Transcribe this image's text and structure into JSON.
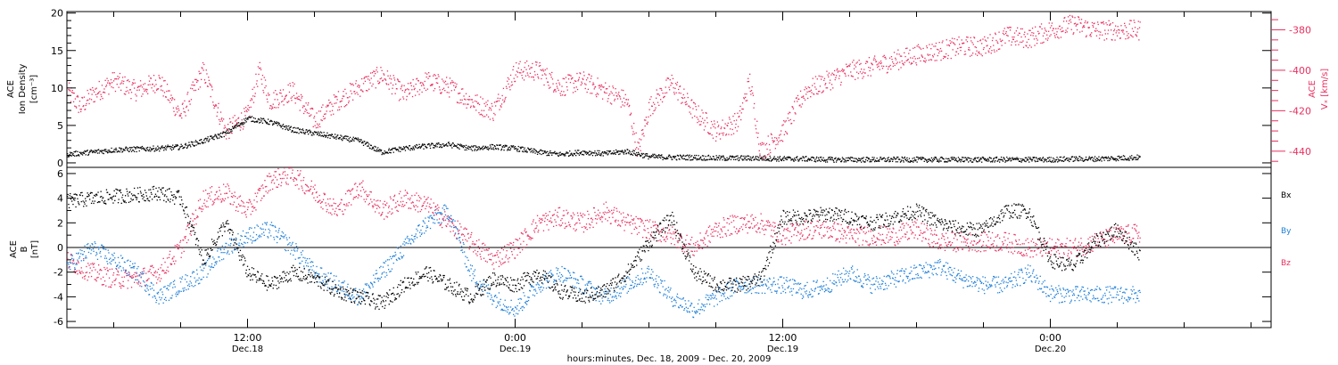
{
  "colors": {
    "frame": "#000000",
    "speed": "#e8305f",
    "bx": "#000000",
    "by": "#1f7fd8",
    "bz": "#e8305f"
  },
  "time_axis": {
    "label": "hours:minutes, Dec. 18, 2009 - Dec. 20, 2009",
    "ticks": [
      {
        "hour": 12,
        "time": "12:00",
        "date": "Dec.18"
      },
      {
        "hour": 24,
        "time": "0:00",
        "date": "Dec.19"
      },
      {
        "hour": 36,
        "time": "12:00",
        "date": "Dec.19"
      },
      {
        "hour": 48,
        "time": "0:00",
        "date": "Dec.20"
      }
    ]
  },
  "chart_data": [
    {
      "type": "scatter",
      "xlim": [
        3.9,
        57.9
      ],
      "ylabel_lines": [
        "ACE",
        "Ion Density",
        "[cm⁻³]"
      ],
      "ylim": [
        -0.6,
        20.2
      ],
      "yticks": [
        0,
        5,
        10,
        15,
        20
      ],
      "right_axis": {
        "label_lines": [
          "ACE",
          "Vₓ [km/s]"
        ],
        "ylim": [
          -448,
          -371
        ],
        "ticks": [
          -440,
          -420,
          -400,
          -380
        ]
      },
      "series": [
        {
          "axis": "left",
          "color_key": "bx",
          "x": [
            3.9,
            5,
            6,
            7,
            8,
            9,
            10,
            10.5,
            11,
            12,
            13,
            14,
            15,
            16,
            17,
            18,
            19,
            20,
            21,
            22,
            23,
            24,
            25,
            26,
            27,
            28,
            29,
            30,
            31,
            32,
            33,
            34,
            35,
            36,
            37,
            38,
            39,
            40,
            41,
            42,
            43,
            44,
            45,
            46,
            47,
            48,
            49,
            50,
            51,
            52
          ],
          "y": [
            1.2,
            1.5,
            1.8,
            1.9,
            2.0,
            2.2,
            3.0,
            3.5,
            4.0,
            6.0,
            5.5,
            4.5,
            4.0,
            3.5,
            3.0,
            1.5,
            2.0,
            2.3,
            2.5,
            2.0,
            2.2,
            2.0,
            1.5,
            1.2,
            1.5,
            1.3,
            1.6,
            0.9,
            0.8,
            0.8,
            0.7,
            0.7,
            0.7,
            0.6,
            0.6,
            0.5,
            0.5,
            0.5,
            0.5,
            0.5,
            0.5,
            0.5,
            0.5,
            0.5,
            0.5,
            0.5,
            0.6,
            0.6,
            0.7,
            0.8
          ]
        },
        {
          "axis": "right",
          "color_key": "speed",
          "x": [
            3.9,
            4.5,
            5,
            6,
            7,
            8,
            9,
            10,
            11,
            12,
            12.5,
            13,
            14,
            15,
            16,
            17,
            18,
            19,
            20,
            21,
            22,
            23,
            24,
            25,
            26,
            27,
            28,
            29,
            29.5,
            30,
            31,
            32,
            33,
            34,
            34.5,
            35,
            36,
            37,
            38,
            39,
            40,
            41,
            42,
            43,
            44,
            45,
            46,
            47,
            48,
            49,
            50,
            51,
            52
          ],
          "y": [
            -410,
            -418,
            -412,
            -405,
            -410,
            -405,
            -422,
            -400,
            -430,
            -422,
            -400,
            -415,
            -410,
            -425,
            -415,
            -408,
            -402,
            -412,
            -405,
            -408,
            -415,
            -420,
            -400,
            -400,
            -408,
            -405,
            -410,
            -415,
            -440,
            -418,
            -406,
            -420,
            -430,
            -425,
            -405,
            -440,
            -430,
            -410,
            -405,
            -400,
            -398,
            -395,
            -392,
            -390,
            -388,
            -388,
            -383,
            -384,
            -380,
            -377,
            -380,
            -380,
            -380
          ]
        }
      ]
    },
    {
      "type": "scatter",
      "xlim": [
        3.9,
        57.9
      ],
      "ylabel_lines": [
        "ACE",
        "B",
        "[nT]"
      ],
      "ylim": [
        -6.5,
        6.5
      ],
      "yticks": [
        -6,
        -4,
        -2,
        0,
        2,
        4,
        6
      ],
      "zero_line": true,
      "series": [
        {
          "name": "Bx",
          "color_key": "bx",
          "x": [
            3.9,
            5,
            6,
            7,
            8,
            9,
            10,
            11,
            12,
            13,
            14,
            15,
            16,
            17,
            18,
            19,
            20,
            21,
            22,
            23,
            24,
            25,
            26,
            27,
            28,
            29,
            30,
            31,
            32,
            33,
            34,
            35,
            36,
            37,
            38,
            39,
            40,
            41,
            42,
            43,
            44,
            45,
            46,
            47,
            48,
            49,
            50,
            51,
            52
          ],
          "y": [
            3.8,
            4.0,
            4.2,
            4.3,
            4.5,
            4.0,
            -1.0,
            2.0,
            -2.0,
            -3.0,
            -2.0,
            -2.5,
            -3.5,
            -4.0,
            -4.5,
            -3.0,
            -2.0,
            -3.0,
            -4.0,
            -2.5,
            -3.0,
            -2.0,
            -3.5,
            -4.0,
            -3.5,
            -2.0,
            0.5,
            2.5,
            -2.0,
            -3.0,
            -3.0,
            -2.5,
            2.5,
            2.5,
            2.8,
            2.5,
            2.0,
            2.5,
            3.0,
            2.0,
            1.5,
            1.5,
            3.0,
            3.0,
            -1.0,
            -1.5,
            0.5,
            1.5,
            -0.5
          ]
        },
        {
          "name": "By",
          "color_key": "by",
          "x": [
            3.9,
            5,
            6,
            7,
            8,
            9,
            10,
            11,
            12,
            13,
            14,
            15,
            16,
            17,
            18,
            19,
            20,
            21,
            22,
            23,
            24,
            25,
            26,
            27,
            28,
            29,
            30,
            31,
            32,
            33,
            34,
            35,
            36,
            37,
            38,
            39,
            40,
            41,
            42,
            43,
            44,
            45,
            46,
            47,
            48,
            49,
            50,
            51,
            52
          ],
          "y": [
            -1.5,
            0.0,
            -1.0,
            -2.0,
            -4.0,
            -3.0,
            -2.0,
            0.0,
            1.0,
            1.5,
            0.0,
            -2.0,
            -3.0,
            -4.0,
            -2.0,
            0.0,
            2.0,
            3.0,
            -2.0,
            -4.0,
            -5.0,
            -3.0,
            -2.0,
            -3.0,
            -4.0,
            -3.0,
            -2.0,
            -4.0,
            -5.0,
            -4.0,
            -3.0,
            -3.0,
            -3.0,
            -3.5,
            -3.0,
            -2.0,
            -3.0,
            -2.5,
            -2.0,
            -1.5,
            -2.5,
            -3.0,
            -3.0,
            -2.0,
            -3.7,
            -3.8,
            -3.8,
            -3.8,
            -3.8
          ]
        },
        {
          "name": "Bz",
          "color_key": "bz",
          "x": [
            3.9,
            5,
            6,
            7,
            8,
            9,
            10,
            11,
            12,
            13,
            14,
            15,
            16,
            17,
            18,
            19,
            20,
            21,
            22,
            23,
            24,
            25,
            26,
            27,
            28,
            29,
            30,
            31,
            32,
            33,
            34,
            35,
            36,
            37,
            38,
            39,
            40,
            41,
            42,
            43,
            44,
            45,
            46,
            47,
            48,
            49,
            50,
            51,
            52
          ],
          "y": [
            -1.0,
            -2.0,
            -2.5,
            -2.5,
            -2.0,
            0.0,
            4.0,
            4.5,
            3.0,
            5.5,
            6.0,
            4.5,
            3.0,
            5.0,
            3.0,
            4.0,
            3.5,
            2.0,
            0.5,
            -1.0,
            0.0,
            2.0,
            2.5,
            2.0,
            3.0,
            2.0,
            1.5,
            1.0,
            0.0,
            1.5,
            2.0,
            2.0,
            1.0,
            1.5,
            1.5,
            1.0,
            1.0,
            1.0,
            1.5,
            0.5,
            0.5,
            0.5,
            0.5,
            0.0,
            0.0,
            0.0,
            0.5,
            1.0,
            1.2
          ]
        }
      ]
    }
  ]
}
